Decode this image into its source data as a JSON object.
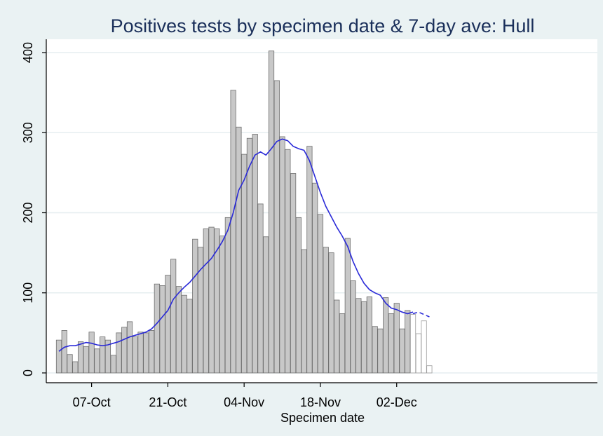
{
  "chart_data": {
    "type": "bar",
    "title": "Positives tests by specimen date & 7-day ave: Hull",
    "xlabel": "Specimen date",
    "ylabel": "",
    "ylim": [
      0,
      420
    ],
    "yticks": [
      0,
      100,
      200,
      300,
      400
    ],
    "xticks": [
      {
        "label": "07-Oct",
        "day": 7
      },
      {
        "label": "21-Oct",
        "day": 21
      },
      {
        "label": "04-Nov",
        "day": 35
      },
      {
        "label": "18-Nov",
        "day": 49
      },
      {
        "label": "02-Dec",
        "day": 63
      }
    ],
    "x_start_date": "01-Oct",
    "grid": true,
    "colors": {
      "bar_fill": "#c8c8c8",
      "bar_stroke": "#6e6e6e",
      "provisional_fill": "#ffffff",
      "provisional_stroke": "#9a9a9a",
      "line": "#2a2ad8",
      "plot_bg": "#ffffff",
      "page_bg": "#eaf2f3",
      "grid": "#e6eef0"
    },
    "series": [
      {
        "kind": "bar",
        "values": [
          41,
          53,
          23,
          14,
          39,
          33,
          51,
          30,
          45,
          41,
          22,
          50,
          57,
          64,
          45,
          51,
          50,
          53,
          111,
          109,
          122,
          142,
          108,
          97,
          92,
          167,
          157,
          180,
          182,
          180,
          171,
          194,
          353,
          307,
          273,
          293,
          298,
          211,
          170,
          402,
          365,
          295,
          279,
          249,
          194,
          154,
          283,
          237,
          198,
          157,
          150,
          91,
          74,
          168,
          115,
          93,
          89,
          95,
          58,
          55,
          94,
          74,
          87,
          55,
          78,
          73,
          49,
          65,
          9
        ]
      },
      {
        "kind": "line",
        "values": [
          27,
          32,
          34,
          34,
          36,
          38,
          37,
          35,
          34,
          35,
          37,
          39,
          42,
          45,
          47,
          49,
          51,
          55,
          62,
          70,
          78,
          92,
          100,
          107,
          113,
          121,
          129,
          136,
          143,
          153,
          164,
          178,
          200,
          228,
          241,
          258,
          272,
          276,
          272,
          280,
          289,
          292,
          290,
          283,
          280,
          278,
          265,
          245,
          225,
          208,
          195,
          182,
          171,
          158,
          139,
          124,
          112,
          104,
          100,
          97,
          87,
          81,
          79,
          76,
          74,
          76
        ]
      },
      {
        "kind": "line-projected",
        "values": [
          74,
          76,
          73,
          70
        ]
      }
    ],
    "provisional_from_index": 65
  }
}
